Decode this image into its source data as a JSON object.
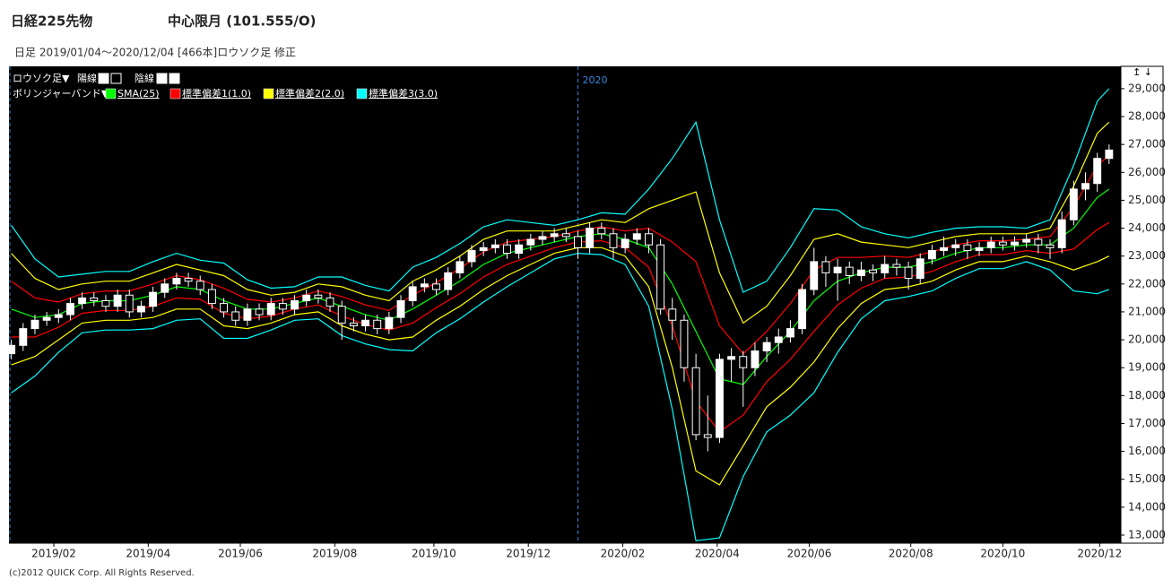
{
  "chart_data": {
    "type": "candlestick",
    "title": "日経225先物",
    "contract": "中心限月 (101.555/O)",
    "subtitle": "日足  2019/01/04～2020/12/04 [466本]ロウソク足 修正",
    "candle_legend": "ロウソク足▼",
    "up_label": "陽線",
    "down_label": "陰線",
    "band_legend": "ボリンジャーバンド▼",
    "scroll_icons": "↥ ↓",
    "footer": "(c)2012 QUICK Corp. All Rights Reserved.",
    "up_color": "#ffffff",
    "down_color": "#000000",
    "background": "#000000",
    "xlim": [
      -1,
      470
    ],
    "ylim": [
      12710,
      29800
    ],
    "xticks": [
      {
        "value": 18,
        "label": "2019/02"
      },
      {
        "value": 58,
        "label": "2019/04"
      },
      {
        "value": 97,
        "label": "2019/06"
      },
      {
        "value": 137,
        "label": "2019/08"
      },
      {
        "value": 179,
        "label": "2019/10"
      },
      {
        "value": 219,
        "label": "2019/12"
      },
      {
        "value": 259,
        "label": "2020/02"
      },
      {
        "value": 299,
        "label": "2020/04"
      },
      {
        "value": 338,
        "label": "2020/06"
      },
      {
        "value": 381,
        "label": "2020/08"
      },
      {
        "value": 420,
        "label": "2020/10"
      },
      {
        "value": 461,
        "label": "2020/12"
      }
    ],
    "yticks": [
      {
        "value": 13000,
        "label": "13,000"
      },
      {
        "value": 14000,
        "label": "14,000"
      },
      {
        "value": 15000,
        "label": "15,000"
      },
      {
        "value": 16000,
        "label": "16,000"
      },
      {
        "value": 17000,
        "label": "17,000"
      },
      {
        "value": 18000,
        "label": "18,000"
      },
      {
        "value": 19000,
        "label": "19,000"
      },
      {
        "value": 20000,
        "label": "20,000"
      },
      {
        "value": 21000,
        "label": "21,000"
      },
      {
        "value": 22000,
        "label": "22,000"
      },
      {
        "value": 23000,
        "label": "23,000"
      },
      {
        "value": 24000,
        "label": "24,000"
      },
      {
        "value": 25000,
        "label": "25,000"
      },
      {
        "value": 26000,
        "label": "26,000"
      },
      {
        "value": 27000,
        "label": "27,000"
      },
      {
        "value": 28000,
        "label": "28,000"
      },
      {
        "value": 29000,
        "label": "29,000"
      }
    ],
    "year_marker": {
      "value": 240,
      "label": "2020",
      "color": "#3a86d8"
    },
    "candle_x": [
      0,
      5,
      10,
      15,
      20,
      25,
      30,
      35,
      40,
      45,
      50,
      55,
      60,
      65,
      70,
      75,
      80,
      85,
      90,
      95,
      100,
      105,
      110,
      115,
      120,
      125,
      130,
      135,
      140,
      145,
      150,
      155,
      160,
      165,
      170,
      175,
      180,
      185,
      190,
      195,
      200,
      205,
      210,
      215,
      220,
      225,
      230,
      235,
      240,
      245,
      250,
      255,
      260,
      265,
      270,
      275,
      280,
      285,
      290,
      295,
      300,
      305,
      310,
      315,
      320,
      325,
      330,
      335,
      340,
      345,
      350,
      355,
      360,
      365,
      370,
      375,
      380,
      385,
      390,
      395,
      400,
      405,
      410,
      415,
      420,
      425,
      430,
      435,
      440,
      445,
      450,
      455,
      460,
      465
    ],
    "ohlc": [
      [
        19500,
        20000,
        19300,
        19800
      ],
      [
        19800,
        20600,
        19600,
        20400
      ],
      [
        20400,
        20900,
        20200,
        20700
      ],
      [
        20700,
        21000,
        20500,
        20800
      ],
      [
        20800,
        21100,
        20600,
        20900
      ],
      [
        20900,
        21500,
        20700,
        21300
      ],
      [
        21300,
        21700,
        21100,
        21500
      ],
      [
        21500,
        21700,
        21200,
        21400
      ],
      [
        21400,
        21600,
        21000,
        21200
      ],
      [
        21200,
        21800,
        21000,
        21600
      ],
      [
        21600,
        21800,
        20800,
        21000
      ],
      [
        21000,
        21400,
        20800,
        21200
      ],
      [
        21200,
        21900,
        21000,
        21700
      ],
      [
        21700,
        22200,
        21500,
        22000
      ],
      [
        22000,
        22400,
        21800,
        22200
      ],
      [
        22200,
        22400,
        21900,
        22100
      ],
      [
        22100,
        22300,
        21600,
        21800
      ],
      [
        21800,
        22000,
        21100,
        21300
      ],
      [
        21300,
        21500,
        20800,
        21000
      ],
      [
        21000,
        21200,
        20500,
        20700
      ],
      [
        20700,
        21300,
        20500,
        21100
      ],
      [
        21100,
        21300,
        20700,
        20900
      ],
      [
        20900,
        21500,
        20700,
        21300
      ],
      [
        21300,
        21500,
        20900,
        21100
      ],
      [
        21100,
        21600,
        20900,
        21400
      ],
      [
        21400,
        21800,
        21200,
        21600
      ],
      [
        21600,
        21800,
        21300,
        21500
      ],
      [
        21500,
        21700,
        21000,
        21200
      ],
      [
        21200,
        21400,
        20000,
        20600
      ],
      [
        20600,
        20800,
        20300,
        20500
      ],
      [
        20500,
        20900,
        20300,
        20700
      ],
      [
        20700,
        20900,
        20200,
        20400
      ],
      [
        20400,
        21000,
        20200,
        20800
      ],
      [
        20800,
        21600,
        20600,
        21400
      ],
      [
        21400,
        22100,
        21200,
        21900
      ],
      [
        21900,
        22200,
        21700,
        22000
      ],
      [
        22000,
        22200,
        21600,
        21800
      ],
      [
        21800,
        22600,
        21600,
        22400
      ],
      [
        22400,
        23000,
        22200,
        22800
      ],
      [
        22800,
        23400,
        22600,
        23200
      ],
      [
        23200,
        23500,
        23000,
        23300
      ],
      [
        23300,
        23600,
        23100,
        23400
      ],
      [
        23400,
        23600,
        22900,
        23100
      ],
      [
        23100,
        23600,
        22900,
        23400
      ],
      [
        23400,
        23800,
        23200,
        23600
      ],
      [
        23600,
        23900,
        23400,
        23700
      ],
      [
        23700,
        24000,
        23500,
        23800
      ],
      [
        23800,
        24000,
        23500,
        23700
      ],
      [
        23700,
        23900,
        22900,
        23300
      ],
      [
        23300,
        24200,
        23100,
        24000
      ],
      [
        24000,
        24200,
        23600,
        23800
      ],
      [
        23800,
        24000,
        22900,
        23300
      ],
      [
        23300,
        23800,
        23100,
        23600
      ],
      [
        23600,
        24000,
        23400,
        23800
      ],
      [
        23800,
        24000,
        23100,
        23400
      ],
      [
        23400,
        23600,
        20900,
        21100
      ],
      [
        21100,
        21500,
        20000,
        20700
      ],
      [
        20700,
        20900,
        18500,
        19000
      ],
      [
        19000,
        19500,
        16400,
        16600
      ],
      [
        16600,
        18000,
        16000,
        16500
      ],
      [
        16500,
        19500,
        16300,
        19300
      ],
      [
        19300,
        19700,
        18500,
        19400
      ],
      [
        19400,
        19600,
        17600,
        19000
      ],
      [
        19000,
        19900,
        18700,
        19600
      ],
      [
        19600,
        20100,
        19200,
        19900
      ],
      [
        19900,
        20400,
        19500,
        20100
      ],
      [
        20100,
        20700,
        19900,
        20400
      ],
      [
        20400,
        22000,
        20200,
        21800
      ],
      [
        21800,
        23300,
        21600,
        22800
      ],
      [
        22800,
        23000,
        21900,
        22400
      ],
      [
        22400,
        22900,
        21400,
        22600
      ],
      [
        22600,
        22800,
        22000,
        22300
      ],
      [
        22300,
        22800,
        22100,
        22500
      ],
      [
        22500,
        22700,
        22100,
        22400
      ],
      [
        22400,
        23000,
        22200,
        22700
      ],
      [
        22700,
        22900,
        22300,
        22600
      ],
      [
        22600,
        22800,
        21800,
        22200
      ],
      [
        22200,
        23100,
        22000,
        22900
      ],
      [
        22900,
        23400,
        22700,
        23200
      ],
      [
        23200,
        23700,
        23000,
        23300
      ],
      [
        23300,
        23600,
        23000,
        23400
      ],
      [
        23400,
        23600,
        22900,
        23200
      ],
      [
        23200,
        23500,
        23000,
        23300
      ],
      [
        23300,
        23700,
        23100,
        23500
      ],
      [
        23500,
        23700,
        23200,
        23400
      ],
      [
        23400,
        23700,
        23200,
        23500
      ],
      [
        23500,
        23800,
        23300,
        23600
      ],
      [
        23600,
        23800,
        23100,
        23400
      ],
      [
        23400,
        23600,
        22900,
        23300
      ],
      [
        23300,
        24600,
        23100,
        24300
      ],
      [
        24300,
        25700,
        24100,
        25400
      ],
      [
        25400,
        26000,
        25000,
        25600
      ],
      [
        25600,
        26700,
        25300,
        26500
      ],
      [
        26500,
        27000,
        26300,
        26800
      ]
    ],
    "band_x": [
      0,
      10,
      20,
      30,
      40,
      50,
      60,
      70,
      80,
      90,
      100,
      110,
      120,
      130,
      140,
      150,
      160,
      170,
      180,
      190,
      200,
      210,
      220,
      230,
      240,
      250,
      260,
      270,
      280,
      290,
      300,
      310,
      320,
      330,
      340,
      350,
      360,
      370,
      380,
      390,
      400,
      410,
      420,
      430,
      440,
      450,
      460,
      465
    ],
    "bands": [
      {
        "name": "SMA(25)",
        "color": "#00ff00",
        "values": [
          21100,
          20800,
          20900,
          21300,
          21400,
          21400,
          21600,
          21900,
          21800,
          21400,
          21100,
          21100,
          21300,
          21500,
          21200,
          20900,
          20700,
          21100,
          21600,
          22100,
          22700,
          23100,
          23300,
          23500,
          23700,
          23800,
          23600,
          23300,
          22000,
          20300,
          18600,
          18400,
          19400,
          20300,
          21400,
          22100,
          22400,
          22600,
          22600,
          22800,
          23100,
          23300,
          23300,
          23400,
          23400,
          24000,
          25100,
          25400
        ]
      },
      {
        "name": "標準偏差1(1.0)",
        "color": "#ff0000",
        "upper": [
          22100,
          21500,
          21350,
          21650,
          21750,
          21750,
          22000,
          22300,
          22150,
          21850,
          21450,
          21350,
          21500,
          21750,
          21550,
          21250,
          21050,
          21600,
          22050,
          22550,
          23150,
          23500,
          23600,
          23700,
          23900,
          24050,
          23900,
          24000,
          23500,
          22800,
          20500,
          19500,
          20300,
          21300,
          22500,
          22950,
          22950,
          23000,
          22950,
          23150,
          23400,
          23550,
          23550,
          23600,
          23700,
          24750,
          26250,
          26600
        ],
        "lower": [
          20100,
          20100,
          20450,
          20950,
          21050,
          21050,
          21200,
          21500,
          21450,
          20950,
          20750,
          20850,
          21100,
          21250,
          20850,
          20550,
          20350,
          20600,
          21150,
          21650,
          22250,
          22700,
          23000,
          23300,
          23500,
          23550,
          23300,
          22600,
          20500,
          17800,
          16700,
          17300,
          18500,
          19300,
          20300,
          21250,
          21850,
          22200,
          22250,
          22450,
          22800,
          23050,
          23050,
          23200,
          23100,
          23250,
          23950,
          24200
        ]
      },
      {
        "name": "標準偏差2(2.0)",
        "color": "#ffff00",
        "upper": [
          23100,
          22200,
          21800,
          22000,
          22100,
          22100,
          22400,
          22700,
          22500,
          22300,
          21800,
          21600,
          21700,
          22000,
          21900,
          21600,
          21400,
          22100,
          22500,
          23000,
          23600,
          23900,
          23900,
          23900,
          24100,
          24300,
          24200,
          24700,
          25000,
          25300,
          22400,
          20600,
          21200,
          22300,
          23600,
          23800,
          23500,
          23400,
          23300,
          23500,
          23700,
          23800,
          23800,
          23800,
          24000,
          25500,
          27400,
          27800
        ],
        "lower": [
          19100,
          19400,
          20000,
          20600,
          20700,
          20700,
          20800,
          21100,
          21100,
          20500,
          20400,
          20600,
          20900,
          21000,
          20500,
          20200,
          20000,
          20100,
          20700,
          21200,
          21800,
          22300,
          22700,
          23100,
          23300,
          23300,
          23000,
          21900,
          19000,
          15300,
          14800,
          16200,
          17600,
          18300,
          19200,
          20400,
          21300,
          21800,
          21900,
          22100,
          22500,
          22800,
          22800,
          23000,
          22800,
          22500,
          22800,
          23000
        ]
      },
      {
        "name": "標準偏差3(3.0)",
        "color": "#00ffff",
        "upper": [
          24100,
          22900,
          22250,
          22350,
          22450,
          22450,
          22800,
          23100,
          22850,
          22750,
          22150,
          21850,
          21900,
          22250,
          22250,
          21950,
          21750,
          22600,
          22950,
          23450,
          24050,
          24300,
          24200,
          24100,
          24300,
          24550,
          24500,
          25400,
          26500,
          27800,
          24300,
          21700,
          22100,
          23300,
          24700,
          24650,
          24050,
          23800,
          23650,
          23850,
          24000,
          24050,
          24050,
          24000,
          24300,
          26250,
          28550,
          29000
        ],
        "lower": [
          18100,
          18700,
          19550,
          20250,
          20350,
          20350,
          20400,
          20700,
          20750,
          20050,
          20050,
          20350,
          20700,
          20750,
          20150,
          19850,
          19650,
          19600,
          20250,
          20750,
          21350,
          21900,
          22400,
          22900,
          23100,
          23050,
          22700,
          21200,
          17500,
          12800,
          12900,
          15100,
          16700,
          17300,
          18100,
          19550,
          20750,
          21400,
          21550,
          21750,
          22200,
          22550,
          22550,
          22800,
          22500,
          21750,
          21650,
          21800
        ]
      }
    ]
  }
}
